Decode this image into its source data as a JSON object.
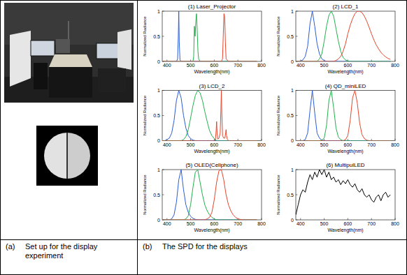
{
  "captions": [
    {
      "label": "(a)",
      "text": "Set up for the display experiment"
    },
    {
      "label": "(b)",
      "text": "The SPD for the displays"
    }
  ],
  "chart_data": [
    {
      "type": "line",
      "title": "(1) Laser_Projector",
      "x_label": "Wavelength(nm)",
      "y_label": "Normalized Radiance",
      "x": [
        380,
        430,
        440,
        445,
        448,
        450,
        452,
        455,
        460,
        500,
        510,
        513,
        516,
        519,
        522,
        525,
        528,
        531,
        534,
        540,
        620,
        630,
        635,
        638,
        641,
        644,
        647,
        650,
        660,
        780
      ],
      "xlim": [
        380,
        800
      ],
      "xticks": [
        400,
        500,
        600,
        700,
        800
      ],
      "ylim": [
        0,
        1
      ],
      "yticks": [
        0,
        0.5,
        1
      ],
      "series": [
        {
          "color": "#2a5bd7",
          "values": [
            0,
            0,
            0,
            0.05,
            0.5,
            1,
            0.4,
            0.03,
            0,
            0,
            0,
            0,
            0,
            0,
            0,
            0,
            0,
            0,
            0,
            0,
            0,
            0,
            0,
            0,
            0,
            0,
            0,
            0,
            0,
            0
          ]
        },
        {
          "color": "#22b14c",
          "values": [
            0,
            0,
            0,
            0,
            0,
            0,
            0,
            0,
            0,
            0,
            0,
            0.1,
            0.7,
            0.5,
            0.8,
            0.95,
            0.6,
            0.2,
            0.05,
            0,
            0,
            0,
            0,
            0,
            0,
            0,
            0,
            0,
            0,
            0
          ]
        },
        {
          "color": "#e8452c",
          "values": [
            0,
            0,
            0,
            0,
            0,
            0,
            0,
            0,
            0,
            0,
            0,
            0,
            0,
            0,
            0,
            0,
            0,
            0,
            0,
            0,
            0,
            0,
            0.05,
            0.5,
            0.95,
            0.9,
            0.4,
            0.05,
            0,
            0
          ]
        }
      ]
    },
    {
      "type": "line",
      "title": "(2) LCD_1",
      "x_label": "Wavelength(nm)",
      "y_label": "Normalized Radiance",
      "x": [
        380,
        390,
        400,
        410,
        420,
        430,
        440,
        450,
        460,
        470,
        480,
        490,
        500,
        510,
        520,
        530,
        540,
        550,
        560,
        570,
        580,
        590,
        600,
        610,
        620,
        630,
        640,
        650,
        660,
        670,
        680,
        690,
        700,
        710,
        720,
        730,
        740,
        750,
        760,
        770,
        780
      ],
      "xlim": [
        380,
        800
      ],
      "xticks": [
        400,
        500,
        600,
        700,
        800
      ],
      "ylim": [
        0,
        1
      ],
      "yticks": [
        0,
        0.5,
        1
      ],
      "series": [
        {
          "color": "#2a5bd7",
          "values": [
            0,
            0,
            0.01,
            0.03,
            0.1,
            0.3,
            0.75,
            1,
            0.7,
            0.35,
            0.15,
            0.05,
            0.02,
            0,
            0,
            0,
            0,
            0,
            0,
            0,
            0,
            0,
            0,
            0,
            0,
            0,
            0,
            0,
            0,
            0,
            0,
            0,
            0,
            0,
            0,
            0,
            0,
            0,
            0,
            0,
            0
          ]
        },
        {
          "color": "#22b14c",
          "values": [
            0,
            0,
            0,
            0,
            0,
            0,
            0,
            0,
            0,
            0,
            0.05,
            0.15,
            0.4,
            0.7,
            0.92,
            1,
            0.9,
            0.65,
            0.4,
            0.2,
            0.08,
            0.03,
            0.01,
            0,
            0,
            0,
            0,
            0,
            0,
            0,
            0,
            0,
            0,
            0,
            0,
            0,
            0,
            0,
            0,
            0,
            0
          ]
        },
        {
          "color": "#e8452c",
          "values": [
            0,
            0,
            0,
            0,
            0,
            0,
            0,
            0,
            0,
            0,
            0,
            0,
            0,
            0,
            0,
            0,
            0,
            0.02,
            0.05,
            0.1,
            0.2,
            0.35,
            0.55,
            0.72,
            0.85,
            0.95,
            1,
            1,
            0.97,
            0.9,
            0.8,
            0.68,
            0.55,
            0.43,
            0.33,
            0.25,
            0.18,
            0.13,
            0.09,
            0.06,
            0.04
          ]
        }
      ]
    },
    {
      "type": "line",
      "title": "(3) LCD_2",
      "x_label": "Wavelength(nm)",
      "y_label": "Normalized Radiance",
      "x": [
        380,
        390,
        400,
        410,
        420,
        430,
        440,
        450,
        460,
        470,
        480,
        490,
        500,
        510,
        520,
        530,
        540,
        550,
        560,
        570,
        580,
        590,
        600,
        605,
        608,
        610,
        612,
        615,
        620,
        625,
        628,
        630,
        632,
        635,
        640,
        645,
        648,
        650,
        652,
        655,
        660,
        670,
        680,
        690,
        700,
        710,
        720,
        730,
        740,
        750,
        760,
        770,
        780
      ],
      "xlim": [
        380,
        800
      ],
      "xticks": [
        400,
        500,
        600,
        700,
        800
      ],
      "ylim": [
        0,
        1
      ],
      "yticks": [
        0,
        0.5,
        1
      ],
      "series": [
        {
          "color": "#2a5bd7",
          "values": [
            0,
            0,
            0.02,
            0.05,
            0.15,
            0.4,
            0.8,
            1,
            0.85,
            0.5,
            0.25,
            0.1,
            0.04,
            0.01,
            0,
            0,
            0,
            0,
            0,
            0,
            0,
            0,
            0,
            0,
            0,
            0,
            0,
            0,
            0,
            0,
            0,
            0,
            0,
            0,
            0,
            0,
            0,
            0,
            0,
            0,
            0,
            0,
            0,
            0,
            0,
            0,
            0,
            0,
            0,
            0,
            0,
            0,
            0
          ]
        },
        {
          "color": "#22b14c",
          "values": [
            0,
            0,
            0,
            0,
            0,
            0,
            0,
            0,
            0,
            0.02,
            0.08,
            0.22,
            0.45,
            0.7,
            0.9,
            1,
            0.95,
            0.8,
            0.58,
            0.38,
            0.2,
            0.1,
            0.04,
            0.02,
            0.01,
            0,
            0,
            0,
            0,
            0,
            0,
            0,
            0,
            0,
            0,
            0,
            0,
            0,
            0,
            0,
            0,
            0,
            0,
            0,
            0,
            0,
            0,
            0,
            0,
            0,
            0,
            0,
            0
          ]
        },
        {
          "color": "#e8452c",
          "values": [
            0,
            0,
            0,
            0,
            0,
            0,
            0,
            0,
            0,
            0,
            0,
            0,
            0,
            0,
            0,
            0,
            0,
            0,
            0,
            0,
            0,
            0,
            0,
            0.02,
            0.2,
            0.38,
            0.15,
            0.03,
            0.05,
            0.15,
            0.6,
            1,
            0.55,
            0.1,
            0.05,
            0.05,
            0.15,
            0.22,
            0.1,
            0.03,
            0,
            0,
            0,
            0,
            0,
            0,
            0,
            0,
            0,
            0,
            0,
            0,
            0
          ]
        }
      ]
    },
    {
      "type": "line",
      "title": "(4) QD_miniLED",
      "x_label": "Wavelength(nm)",
      "y_label": "Normalized Radiance",
      "x": [
        380,
        390,
        400,
        410,
        420,
        430,
        440,
        450,
        460,
        470,
        480,
        490,
        500,
        510,
        520,
        530,
        540,
        550,
        560,
        570,
        580,
        590,
        600,
        610,
        620,
        630,
        640,
        650,
        660,
        670,
        680,
        690,
        700,
        710,
        720,
        730,
        740,
        750,
        760,
        770,
        780
      ],
      "xlim": [
        380,
        800
      ],
      "xticks": [
        400,
        500,
        600,
        700,
        800
      ],
      "ylim": [
        0,
        1
      ],
      "yticks": [
        0,
        0.5,
        1
      ],
      "series": [
        {
          "color": "#2a5bd7",
          "values": [
            0,
            0,
            0,
            0,
            0.02,
            0.15,
            0.6,
            1,
            0.55,
            0.15,
            0.05,
            0.01,
            0,
            0,
            0,
            0,
            0,
            0,
            0,
            0,
            0,
            0,
            0,
            0,
            0,
            0,
            0,
            0,
            0,
            0,
            0,
            0,
            0,
            0,
            0,
            0,
            0,
            0,
            0,
            0,
            0
          ]
        },
        {
          "color": "#22b14c",
          "values": [
            0,
            0,
            0,
            0,
            0,
            0,
            0,
            0,
            0,
            0,
            0,
            0.01,
            0.05,
            0.3,
            0.8,
            1,
            0.65,
            0.25,
            0.07,
            0.02,
            0,
            0,
            0,
            0,
            0,
            0,
            0,
            0,
            0,
            0,
            0,
            0,
            0,
            0,
            0,
            0,
            0,
            0,
            0,
            0,
            0
          ]
        },
        {
          "color": "#e8452c",
          "values": [
            0,
            0,
            0,
            0,
            0,
            0,
            0,
            0,
            0,
            0,
            0,
            0,
            0,
            0,
            0,
            0,
            0,
            0,
            0,
            0,
            0,
            0.02,
            0.1,
            0.4,
            0.85,
            1,
            0.75,
            0.35,
            0.12,
            0.04,
            0.01,
            0,
            0,
            0,
            0,
            0,
            0,
            0,
            0,
            0,
            0
          ]
        }
      ]
    },
    {
      "type": "line",
      "title": "(5) OLED(Cellphone)",
      "x_label": "Wavelength(nm)",
      "y_label": "Normalized Radiance",
      "x": [
        380,
        390,
        400,
        410,
        420,
        430,
        440,
        450,
        460,
        470,
        480,
        490,
        500,
        510,
        520,
        530,
        540,
        550,
        560,
        570,
        580,
        590,
        600,
        610,
        620,
        630,
        640,
        650,
        660,
        670,
        680,
        690,
        700,
        710,
        720,
        730,
        740,
        750,
        760,
        770,
        780
      ],
      "xlim": [
        380,
        800
      ],
      "xticks": [
        400,
        500,
        600,
        700,
        800
      ],
      "ylim": [
        0,
        1
      ],
      "yticks": [
        0,
        0.5,
        1
      ],
      "series": [
        {
          "color": "#2a5bd7",
          "values": [
            0,
            0,
            0,
            0,
            0.02,
            0.1,
            0.35,
            0.8,
            1,
            0.6,
            0.3,
            0.15,
            0.07,
            0.03,
            0.01,
            0,
            0,
            0,
            0,
            0,
            0,
            0,
            0,
            0,
            0,
            0,
            0,
            0,
            0,
            0,
            0,
            0,
            0,
            0,
            0,
            0,
            0,
            0,
            0,
            0,
            0
          ]
        },
        {
          "color": "#22b14c",
          "values": [
            0,
            0,
            0,
            0,
            0,
            0,
            0,
            0,
            0,
            0,
            0.02,
            0.08,
            0.3,
            0.65,
            0.95,
            1,
            0.75,
            0.5,
            0.3,
            0.18,
            0.1,
            0.05,
            0.02,
            0,
            0,
            0,
            0,
            0,
            0,
            0,
            0,
            0,
            0,
            0,
            0,
            0,
            0,
            0,
            0,
            0,
            0
          ]
        },
        {
          "color": "#e8452c",
          "values": [
            0,
            0,
            0,
            0,
            0,
            0,
            0,
            0,
            0,
            0,
            0,
            0,
            0,
            0,
            0,
            0,
            0,
            0,
            0,
            0.02,
            0.05,
            0.15,
            0.4,
            0.75,
            0.98,
            1,
            0.8,
            0.5,
            0.3,
            0.18,
            0.1,
            0.05,
            0.02,
            0.01,
            0,
            0,
            0,
            0,
            0,
            0,
            0
          ]
        }
      ]
    },
    {
      "type": "line",
      "title": "(6) MultipulLED",
      "x_label": "Wavelength(nm)",
      "y_label": "Normalized Radiance",
      "x": [
        380,
        390,
        400,
        410,
        420,
        430,
        440,
        450,
        460,
        470,
        480,
        490,
        500,
        510,
        520,
        530,
        540,
        550,
        560,
        570,
        580,
        590,
        600,
        610,
        620,
        630,
        640,
        650,
        660,
        670,
        680,
        690,
        700,
        710,
        720,
        730,
        740,
        750,
        760,
        770,
        780
      ],
      "xlim": [
        380,
        800
      ],
      "xticks": [
        400,
        500,
        600,
        700,
        800
      ],
      "ylim": [
        0,
        1
      ],
      "yticks": [
        0,
        0.5,
        1
      ],
      "series": [
        {
          "color": "#000000",
          "values": [
            0.1,
            0.3,
            0.5,
            0.6,
            0.55,
            0.75,
            0.9,
            0.8,
            0.95,
            0.85,
            1,
            0.9,
            1,
            0.85,
            0.95,
            0.8,
            0.85,
            0.75,
            0.8,
            0.7,
            0.78,
            0.72,
            0.8,
            0.7,
            0.65,
            0.72,
            0.6,
            0.55,
            0.62,
            0.5,
            0.45,
            0.5,
            0.4,
            0.35,
            0.45,
            0.5,
            0.38,
            0.5,
            0.55,
            0.45,
            0.5
          ]
        }
      ]
    }
  ]
}
